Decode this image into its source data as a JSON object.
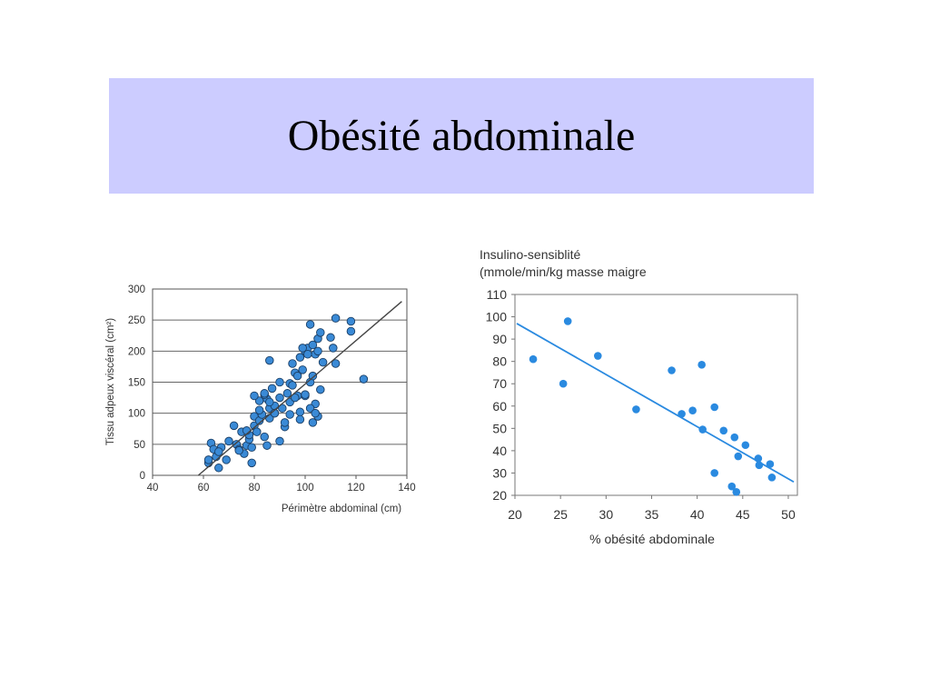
{
  "slide": {
    "title": "Obésité abdominale"
  },
  "chart_data": [
    {
      "type": "scatter",
      "xlabel": "Périmètre abdominal (cm)",
      "ylabel": "Tissu adpeux viscéral (cm²)",
      "xlim": [
        40,
        140
      ],
      "ylim": [
        0,
        300
      ],
      "xticks": [
        40,
        60,
        80,
        100,
        120,
        140
      ],
      "yticks": [
        0,
        50,
        100,
        150,
        200,
        250,
        300
      ],
      "grid": "horizontal",
      "point_color": "#3a8ad6",
      "line_color": "#444444",
      "trendline": [
        [
          58,
          0
        ],
        [
          138,
          280
        ]
      ],
      "x": [
        62,
        63,
        64,
        65,
        66,
        67,
        62,
        66,
        69,
        70,
        72,
        73,
        74,
        75,
        76,
        77,
        78,
        79,
        80,
        78,
        77,
        80,
        81,
        82,
        83,
        84,
        85,
        86,
        87,
        85,
        82,
        84,
        86,
        88,
        90,
        91,
        92,
        93,
        94,
        95,
        96,
        97,
        98,
        99,
        100,
        101,
        102,
        103,
        104,
        105,
        106,
        88,
        90,
        92,
        94,
        96,
        98,
        100,
        102,
        104,
        106,
        95,
        97,
        99,
        101,
        103,
        105,
        107,
        110,
        111,
        112,
        118,
        118,
        123,
        103,
        105,
        98,
        112,
        100,
        102,
        104,
        90,
        80,
        82,
        84,
        86,
        88,
        74,
        79,
        86,
        94
      ],
      "y": [
        20,
        52,
        42,
        30,
        12,
        45,
        25,
        38,
        25,
        55,
        80,
        50,
        42,
        70,
        35,
        48,
        58,
        20,
        80,
        65,
        72,
        95,
        70,
        88,
        98,
        62,
        48,
        108,
        140,
        123,
        120,
        130,
        92,
        112,
        125,
        108,
        78,
        132,
        148,
        145,
        165,
        128,
        190,
        170,
        200,
        205,
        243,
        210,
        195,
        220,
        230,
        100,
        55,
        85,
        118,
        125,
        102,
        128,
        150,
        115,
        138,
        180,
        160,
        205,
        195,
        160,
        200,
        182,
        222,
        205,
        253,
        248,
        232,
        155,
        85,
        95,
        90,
        180,
        130,
        108,
        100,
        150,
        128,
        105,
        132,
        118,
        100,
        40,
        45,
        185,
        98
      ],
      "point_labels": []
    },
    {
      "type": "scatter",
      "title": "Insulino-sensiblité\n(mmole/min/kg masse maigre",
      "xlabel": "% obésité abdominale",
      "ylabel": "",
      "xlim": [
        20,
        51
      ],
      "ylim": [
        20,
        110
      ],
      "xticks": [
        20,
        25,
        30,
        35,
        40,
        45,
        50
      ],
      "yticks": [
        20,
        30,
        40,
        50,
        60,
        70,
        80,
        90,
        100,
        110
      ],
      "grid": "none",
      "point_color": "#2a8ae0",
      "line_color": "#2a8ae0",
      "trendline": [
        [
          20.2,
          97
        ],
        [
          50.6,
          26
        ]
      ],
      "x": [
        22.0,
        25.3,
        25.8,
        29.1,
        33.3,
        37.2,
        38.3,
        39.5,
        40.5,
        40.6,
        41.9,
        41.9,
        42.9,
        43.8,
        44.1,
        44.3,
        44.5,
        45.3,
        46.7,
        46.8,
        48.0,
        48.2
      ],
      "y": [
        81,
        70,
        98,
        82.5,
        58.5,
        76,
        56.5,
        58,
        78.5,
        49.5,
        59.5,
        30,
        49,
        24,
        46,
        21.5,
        37.5,
        42.5,
        36.5,
        33.5,
        34,
        28
      ]
    }
  ]
}
